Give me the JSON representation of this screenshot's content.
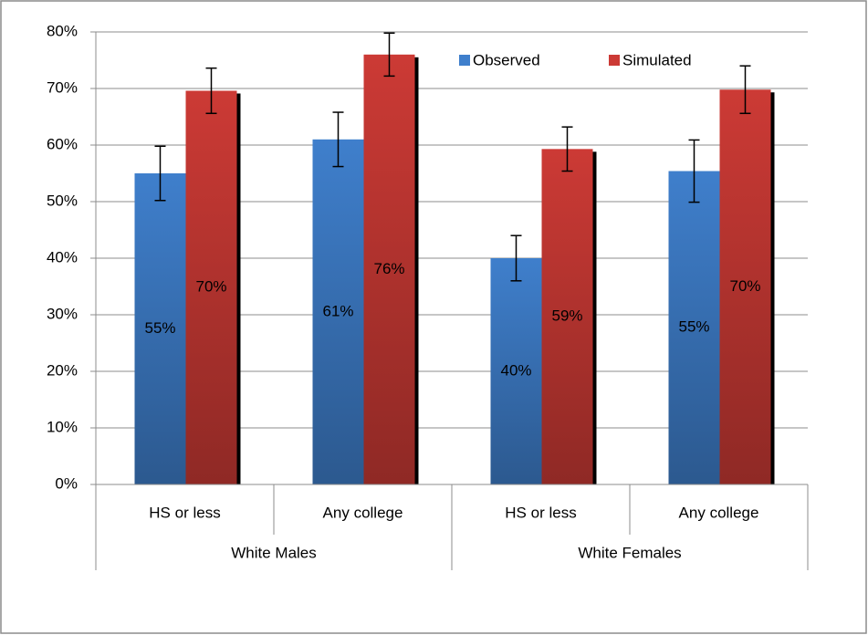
{
  "chart_data": {
    "type": "bar",
    "category_groups": [
      {
        "name": "White Males",
        "categories": [
          "HS or less",
          "Any college"
        ]
      },
      {
        "name": "White Females",
        "categories": [
          "HS or less",
          "Any college"
        ]
      }
    ],
    "series": [
      {
        "name": "Observed",
        "color": "#3f7fcc",
        "values": [
          55,
          61,
          40,
          55.4
        ],
        "value_labels": [
          "55%",
          "61%",
          "40%",
          "55%"
        ],
        "errors": [
          4.8,
          4.8,
          4,
          5.5
        ]
      },
      {
        "name": "Simulated",
        "color": "#cc3a35",
        "values": [
          69.6,
          76,
          59.3,
          69.8
        ],
        "value_labels": [
          "70%",
          "76%",
          "59%",
          "70%"
        ],
        "errors": [
          4,
          3.8,
          3.9,
          4.2
        ]
      }
    ],
    "ylim": [
      0,
      80
    ],
    "yticks": [
      {
        "value": 0,
        "label": "0%"
      },
      {
        "value": 10,
        "label": "10%"
      },
      {
        "value": 20,
        "label": "20%"
      },
      {
        "value": 30,
        "label": "30%"
      },
      {
        "value": 40,
        "label": "40%"
      },
      {
        "value": 50,
        "label": "50%"
      },
      {
        "value": 60,
        "label": "60%"
      },
      {
        "value": 70,
        "label": "70%"
      },
      {
        "value": 80,
        "label": "80%"
      }
    ],
    "grid": true,
    "legend": "top"
  }
}
